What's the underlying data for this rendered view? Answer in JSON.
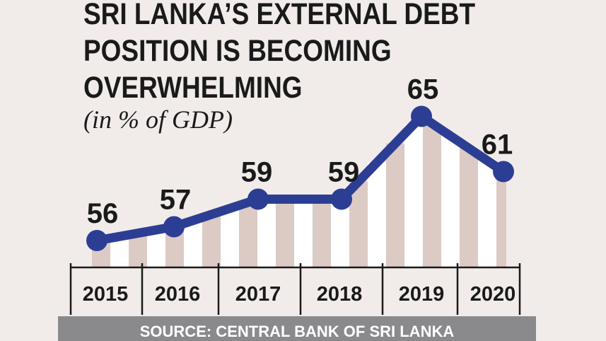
{
  "headline": {
    "line1": "SRI LANKA’S EXTERNAL DEBT",
    "line2": "POSITION IS BECOMING",
    "line3": "OVERWHELMING"
  },
  "subtitle": "(in % of GDP)",
  "source": "SOURCE: CENTRAL BANK OF SRI LANKA",
  "colors": {
    "background": "#f1ecea",
    "line": "#2c3e94",
    "stripe_dark": "#dccac5",
    "stripe_light": "#ffffff",
    "text": "#1a1a1a",
    "source_bar": "#8a8a8c"
  },
  "chart_data": {
    "type": "line",
    "title": "SRI LANKA’S EXTERNAL DEBT POSITION IS BECOMING OVERWHELMING",
    "subtitle": "(in % of GDP)",
    "x": [
      "2015",
      "2016",
      "2017",
      "2018",
      "2019",
      "2020"
    ],
    "series": [
      {
        "name": "External debt (% of GDP)",
        "values": [
          56,
          57,
          59,
          59,
          65,
          61
        ]
      }
    ],
    "data_labels": [
      "56",
      "57",
      "59",
      "59",
      "65",
      "61"
    ],
    "ylim": [
      50,
      66
    ],
    "xlabel": "",
    "ylabel": "",
    "grid": false
  }
}
